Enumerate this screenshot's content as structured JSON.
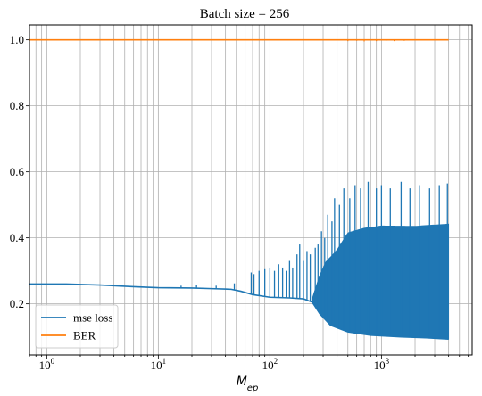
{
  "chart_data": {
    "type": "line",
    "title": "Batch size = 256",
    "xlabel_base": "M",
    "xlabel_sub": "ep",
    "ylabel": "",
    "xscale": "log",
    "xlim": [
      0.7,
      6500
    ],
    "ylim": [
      0.045,
      1.045
    ],
    "grid": true,
    "legend_position": "bottom-left",
    "x_ticks": [
      {
        "base": "10",
        "exp": "0",
        "value": 1
      },
      {
        "base": "10",
        "exp": "1",
        "value": 10
      },
      {
        "base": "10",
        "exp": "2",
        "value": 100
      },
      {
        "base": "10",
        "exp": "3",
        "value": 1000
      }
    ],
    "y_ticks": [
      {
        "label": "0.2",
        "value": 0.2
      },
      {
        "label": "0.4",
        "value": 0.4
      },
      {
        "label": "0.6",
        "value": 0.6
      },
      {
        "label": "0.8",
        "value": 0.8
      },
      {
        "label": "1.0",
        "value": 1.0
      }
    ],
    "series": [
      {
        "name": "mse loss",
        "color": "#1f77b4",
        "baseline": [
          [
            0.7,
            0.26
          ],
          [
            1.5,
            0.26
          ],
          [
            3,
            0.257
          ],
          [
            6,
            0.252
          ],
          [
            10,
            0.249
          ],
          [
            20,
            0.248
          ],
          [
            30,
            0.246
          ],
          [
            45,
            0.244
          ],
          [
            55,
            0.238
          ],
          [
            70,
            0.228
          ],
          [
            100,
            0.22
          ],
          [
            150,
            0.218
          ],
          [
            200,
            0.215
          ],
          [
            240,
            0.205
          ],
          [
            280,
            0.17
          ],
          [
            350,
            0.135
          ],
          [
            500,
            0.115
          ],
          [
            800,
            0.105
          ],
          [
            1500,
            0.1
          ],
          [
            2500,
            0.097
          ],
          [
            4000,
            0.093
          ]
        ],
        "band_upper": [
          [
            240,
            0.22
          ],
          [
            280,
            0.32
          ],
          [
            320,
            0.38
          ],
          [
            400,
            0.43
          ],
          [
            500,
            0.5
          ],
          [
            700,
            0.52
          ],
          [
            1000,
            0.53
          ],
          [
            2000,
            0.53
          ],
          [
            4000,
            0.54
          ]
        ],
        "spikes": [
          [
            16,
            0.255
          ],
          [
            22,
            0.258
          ],
          [
            33,
            0.255
          ],
          [
            48,
            0.262
          ],
          [
            68,
            0.295
          ],
          [
            72,
            0.29
          ],
          [
            80,
            0.3
          ],
          [
            90,
            0.305
          ],
          [
            100,
            0.31
          ],
          [
            110,
            0.3
          ],
          [
            120,
            0.32
          ],
          [
            130,
            0.31
          ],
          [
            140,
            0.3
          ],
          [
            150,
            0.33
          ],
          [
            160,
            0.31
          ],
          [
            175,
            0.35
          ],
          [
            185,
            0.38
          ],
          [
            200,
            0.33
          ],
          [
            215,
            0.36
          ],
          [
            230,
            0.35
          ],
          [
            255,
            0.37
          ],
          [
            270,
            0.38
          ],
          [
            290,
            0.42
          ],
          [
            310,
            0.4
          ],
          [
            330,
            0.47
          ],
          [
            360,
            0.45
          ],
          [
            380,
            0.52
          ],
          [
            420,
            0.5
          ],
          [
            460,
            0.55
          ],
          [
            520,
            0.52
          ],
          [
            580,
            0.56
          ],
          [
            650,
            0.55
          ],
          [
            760,
            0.57
          ],
          [
            900,
            0.55
          ],
          [
            1000,
            0.56
          ],
          [
            1200,
            0.55
          ],
          [
            1500,
            0.57
          ],
          [
            1800,
            0.55
          ],
          [
            2200,
            0.56
          ],
          [
            2700,
            0.55
          ],
          [
            3300,
            0.56
          ],
          [
            3900,
            0.565
          ]
        ]
      },
      {
        "name": "BER",
        "color": "#ff7f0e",
        "points": [
          [
            0.7,
            1.0
          ],
          [
            4000,
            1.0
          ]
        ],
        "dips": [
          [
            500,
            0.996
          ],
          [
            600,
            0.997
          ],
          [
            700,
            0.995
          ],
          [
            900,
            0.996
          ],
          [
            1100,
            0.997
          ],
          [
            1300,
            0.996
          ],
          [
            1600,
            0.997
          ],
          [
            1900,
            0.998
          ]
        ]
      }
    ]
  }
}
